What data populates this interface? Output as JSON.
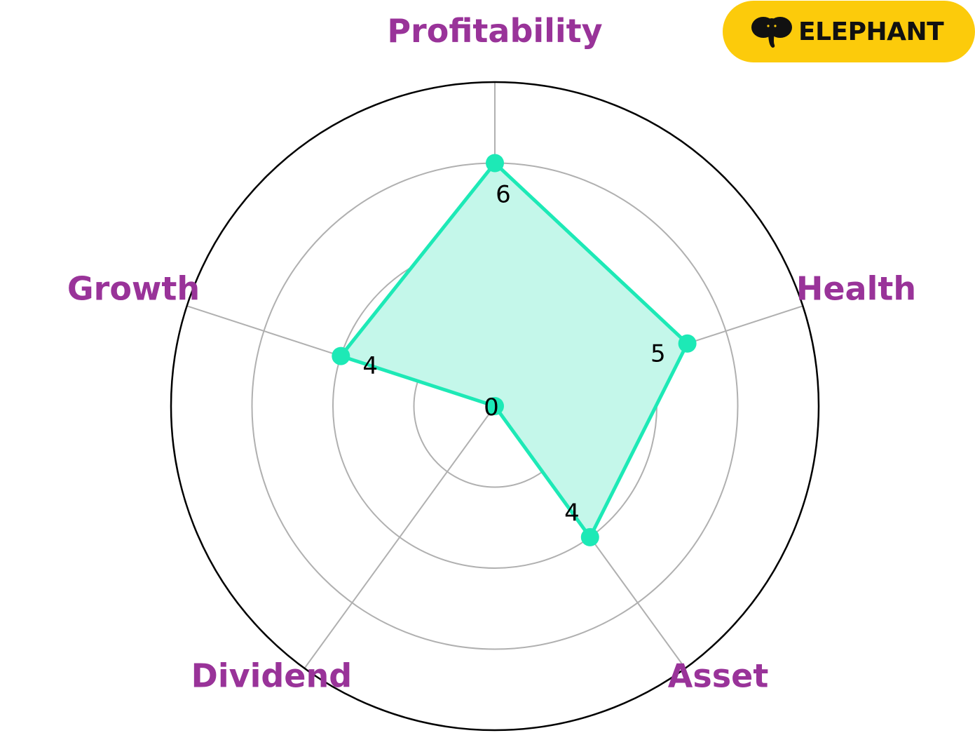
{
  "brand": {
    "name": "ELEPHANT",
    "icon": "elephant-icon",
    "color": "#fccb0b"
  },
  "chart_data": {
    "type": "radar",
    "axes": [
      "Profitability",
      "Health",
      "Asset",
      "Dividend",
      "Growth"
    ],
    "values": [
      6,
      5,
      4,
      0,
      4
    ],
    "value_labels": [
      "6",
      "5",
      "4",
      "0",
      "4"
    ],
    "rlim": [
      0,
      8
    ],
    "rgrid": [
      2,
      4,
      6
    ],
    "grid": true,
    "colors": {
      "series": "#1de9b6",
      "fill": "#c4f7ea",
      "axis_label": "#993399",
      "grid": "#b0b0b0",
      "outer_ring": "#000000"
    }
  }
}
